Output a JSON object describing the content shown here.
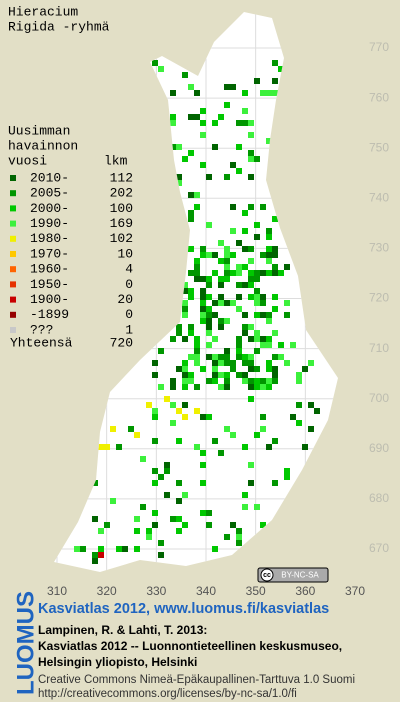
{
  "title": [
    "Hieracium",
    "Rigida -ryhmä"
  ],
  "legend": {
    "heading": [
      "Uusimman",
      "havainnon",
      "vuosi"
    ],
    "count_heading": "lkm",
    "items": [
      {
        "label": "2010-",
        "count": 112,
        "color": "#006400"
      },
      {
        "label": "2005-",
        "count": 202,
        "color": "#009600"
      },
      {
        "label": "2000-",
        "count": 100,
        "color": "#00c800"
      },
      {
        "label": "1990-",
        "count": 169,
        "color": "#3cf03c"
      },
      {
        "label": "1980-",
        "count": 102,
        "color": "#f0f000"
      },
      {
        "label": "1970-",
        "count": 10,
        "color": "#ffc800"
      },
      {
        "label": "1960-",
        "count": 4,
        "color": "#ff6400"
      },
      {
        "label": "1950-",
        "count": 0,
        "color": "#e63200"
      },
      {
        "label": "1900-",
        "count": 20,
        "color": "#c80000"
      },
      {
        "label": "-1899",
        "count": 0,
        "color": "#960000"
      },
      {
        "label": "???",
        "count": 1,
        "color": "#c8c8c8"
      }
    ],
    "total_label": "Yhteensä",
    "total": 720
  },
  "grid": {
    "y_labels": [
      770,
      760,
      750,
      740,
      730,
      720,
      710,
      700,
      690,
      680,
      670
    ],
    "x_labels": [
      310,
      320,
      330,
      340,
      350,
      360,
      370
    ]
  },
  "license_badge": "BY-NC-SA",
  "footer": {
    "link": "Kasviatlas 2012, www.luomus.fi/kasviatlas",
    "citation": [
      "Lampinen, R. & Lahti, T. 2013:",
      "Kasviatlas 2012 -- Luonnontieteellinen keskusmuseo,",
      "Helsingin yliopisto, Helsinki"
    ],
    "license": [
      "Creative Commons Nimeä-Epäkaupallinen-Tarttuva 1.0 Suomi",
      "http://creativecommons.org/licenses/by-nc-sa/1.0/fi"
    ],
    "logo": "LUOMUS"
  }
}
